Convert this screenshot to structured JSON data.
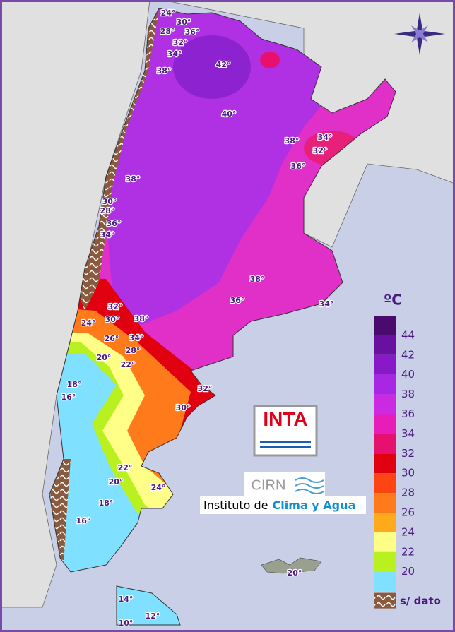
{
  "legend": {
    "unit": "ºC",
    "labels": [
      44,
      42,
      40,
      38,
      36,
      34,
      32,
      30,
      28,
      26,
      24,
      22,
      20
    ],
    "colors": [
      "#4a0a6e",
      "#6a10a0",
      "#8818c8",
      "#a826e4",
      "#cc2ae2",
      "#e81cb8",
      "#e8106e",
      "#e00010",
      "#ff4414",
      "#ff7a1a",
      "#ffaa1a",
      "#ffff88",
      "#b8f020",
      "#80e0ff"
    ],
    "no_data": "s/ dato"
  },
  "logo": {
    "inta": "INTA",
    "cirn": "CIRN",
    "institute": "Instituto de",
    "institute_highlight": "Clima y Agua"
  },
  "map_labels": [
    "24°",
    "30°",
    "28°",
    "36°",
    "32°",
    "34°",
    "38°",
    "42°",
    "40°",
    "38°",
    "34°",
    "32°",
    "36°",
    "38°",
    "30°",
    "28°",
    "36°",
    "34°",
    "38°",
    "36°",
    "34°",
    "32°",
    "30°",
    "24°",
    "38°",
    "26°",
    "34°",
    "28°",
    "20°",
    "22°",
    "18°",
    "32°",
    "16°",
    "30°",
    "22°",
    "20°",
    "24°",
    "18°",
    "16°",
    "20°",
    "14°",
    "12°",
    "10°"
  ]
}
